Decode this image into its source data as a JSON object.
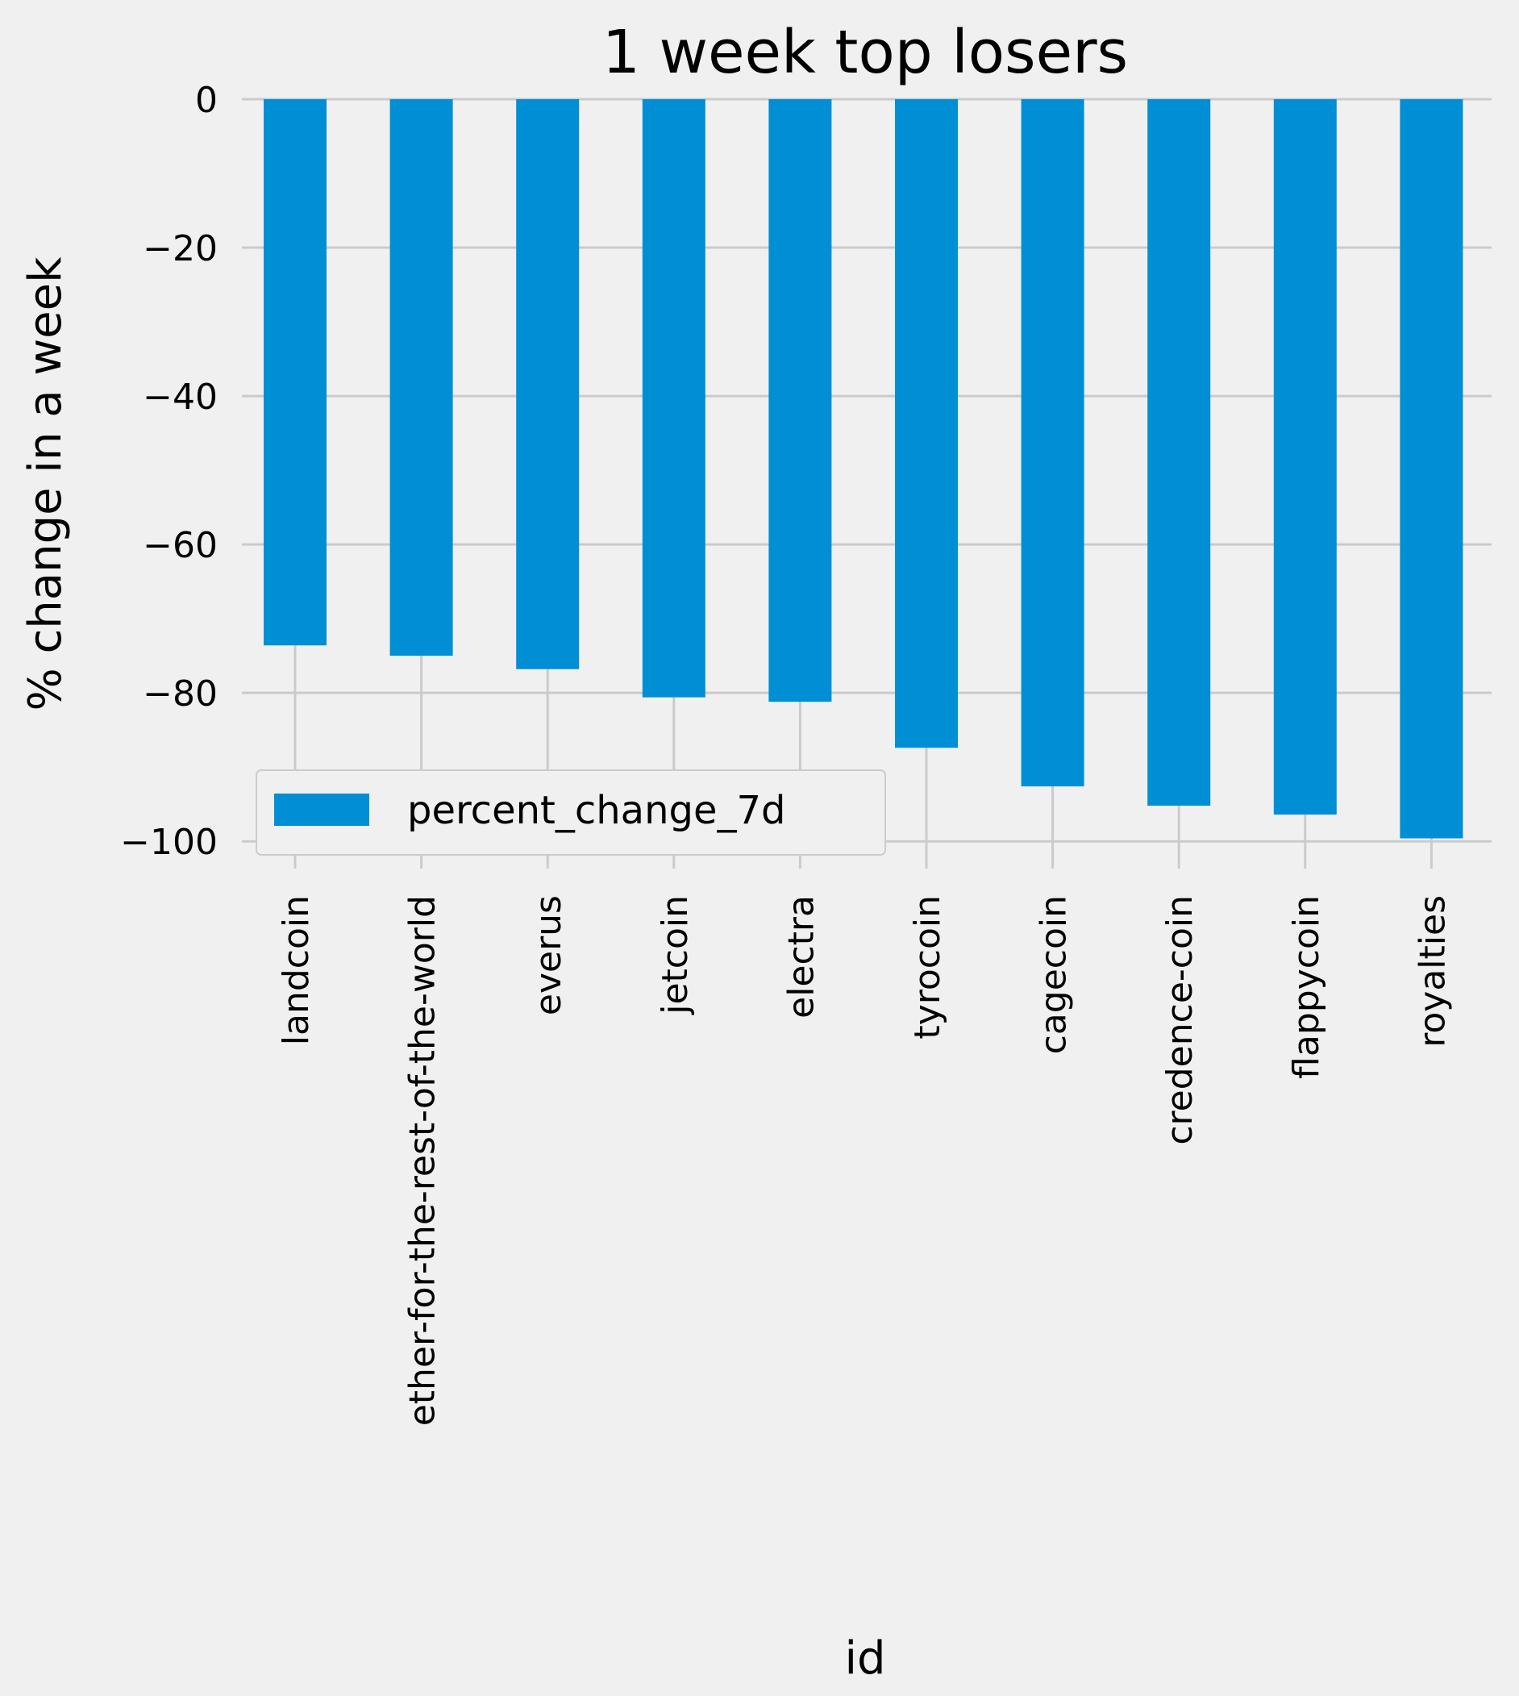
{
  "chart_data": {
    "type": "bar",
    "title": "1 week top losers",
    "xlabel": "id",
    "ylabel": "% change in a week",
    "categories": [
      "landcoin",
      "ether-for-the-rest-of-the-world",
      "everus",
      "jetcoin",
      "electra",
      "tyrocoin",
      "cagecoin",
      "credence-coin",
      "flappycoin",
      "royalties"
    ],
    "series": [
      {
        "name": "percent_change_7d",
        "values": [
          -73.6,
          -75.0,
          -76.8,
          -80.6,
          -81.2,
          -87.4,
          -92.6,
          -95.2,
          -96.4,
          -99.6
        ],
        "color": "#008fd5"
      }
    ],
    "ylim": [
      -101.5,
      0
    ],
    "yticks": [
      0,
      -20,
      -40,
      -60,
      -80,
      -100
    ],
    "ytick_labels": [
      "0",
      "−20",
      "−40",
      "−60",
      "−80",
      "−100"
    ],
    "grid": true,
    "legend_position": "lower-left"
  }
}
